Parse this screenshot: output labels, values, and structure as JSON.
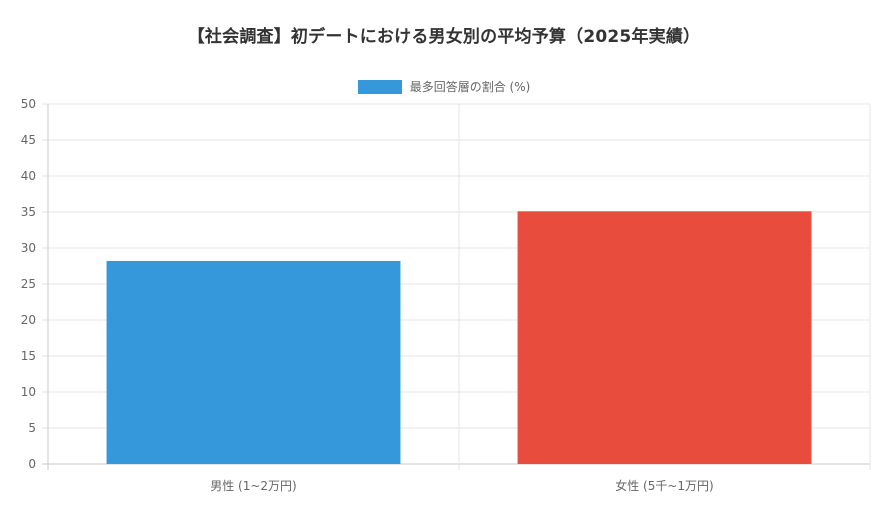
{
  "chart_data": {
    "type": "bar",
    "title": "【社会調査】初デートにおける男女別の平均予算（2025年実績）",
    "categories": [
      "男性 (1~2万円)",
      "女性 (5千~1万円)"
    ],
    "series": [
      {
        "name": "最多回答層の割合 (%)",
        "values": [
          28.2,
          35.1
        ],
        "colors": [
          "#3498db",
          "#e74c3c"
        ]
      }
    ],
    "ylim": [
      0,
      50
    ],
    "yticks": [
      0,
      5,
      10,
      15,
      20,
      25,
      30,
      35,
      40,
      45,
      50
    ],
    "grid": true,
    "legend_position": "top-center"
  }
}
